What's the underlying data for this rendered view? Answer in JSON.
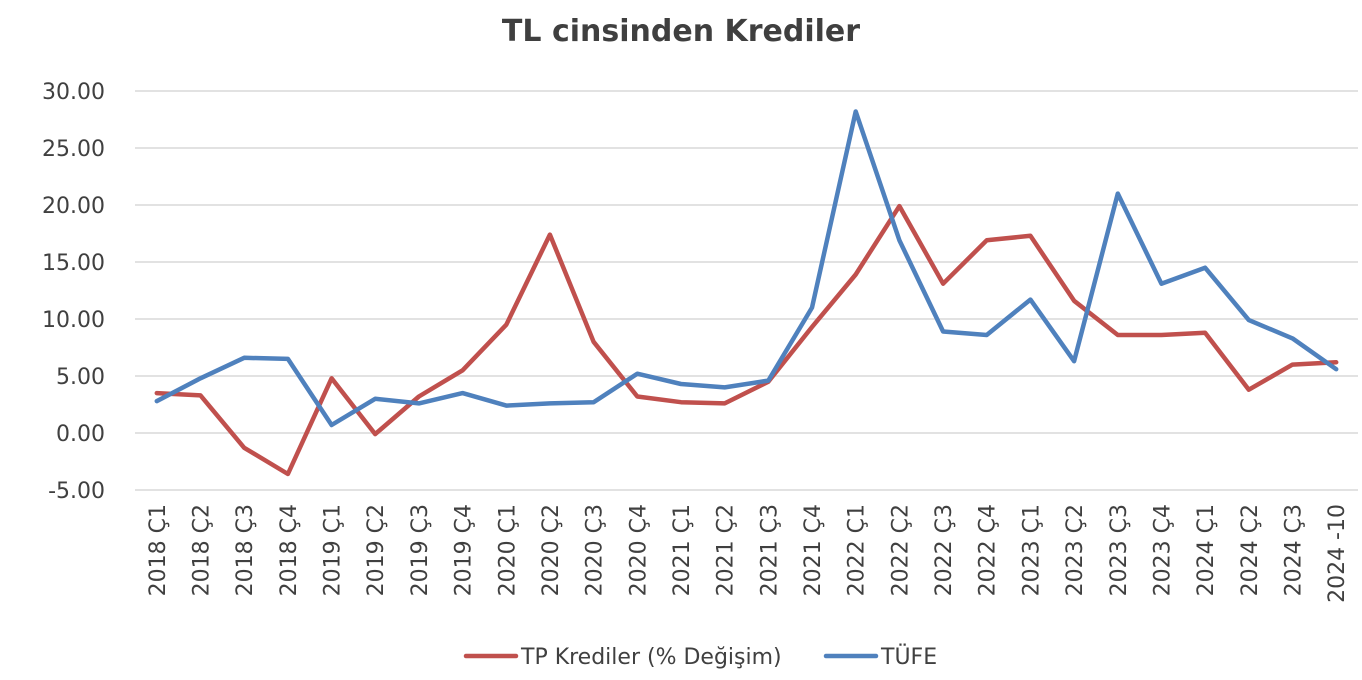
{
  "chart_data": {
    "type": "line",
    "title": "TL cinsinden Krediler",
    "xlabel": "",
    "ylabel": "",
    "ylim": [
      -5,
      30
    ],
    "y_ticks": [
      "30.00",
      "25.00",
      "20.00",
      "15.00",
      "10.00",
      "5.00",
      "0.00",
      "-5.00"
    ],
    "y_tick_values": [
      30,
      25,
      20,
      15,
      10,
      5,
      0,
      -5
    ],
    "grid": true,
    "legend_position": "bottom",
    "categories": [
      "2018 Ç1",
      "2018 Ç2",
      "2018 Ç3",
      "2018 Ç4",
      "2019 Ç1",
      "2019 Ç2",
      "2019 Ç3",
      "2019 Ç4",
      "2020 Ç1",
      "2020 Ç2",
      "2020 Ç3",
      "2020 Ç4",
      "2021 Ç1",
      "2021 Ç2",
      "2021 Ç3",
      "2021 Ç4",
      "2022 Ç1",
      "2022 Ç2",
      "2022 Ç3",
      "2022 Ç4",
      "2023 Ç1",
      "2023 Ç2",
      "2023 Ç3",
      "2023 Ç4",
      "2024 Ç1",
      "2024 Ç2",
      "2024 Ç3",
      "2024 -10"
    ],
    "series": [
      {
        "name": "TP Krediler (% Değişim)",
        "color": "#c0504d",
        "values": [
          3.5,
          3.3,
          -1.3,
          -3.6,
          4.8,
          -0.1,
          3.2,
          5.5,
          9.5,
          17.4,
          8.0,
          3.2,
          2.7,
          2.6,
          4.5,
          9.3,
          13.9,
          19.9,
          13.1,
          16.9,
          17.3,
          11.6,
          8.6,
          8.6,
          8.8,
          3.8,
          6.0,
          6.2
        ]
      },
      {
        "name": "TÜFE",
        "color": "#4f81bd",
        "values": [
          2.8,
          4.8,
          6.6,
          6.5,
          0.7,
          3.0,
          2.6,
          3.5,
          2.4,
          2.6,
          2.7,
          5.2,
          4.3,
          4.0,
          4.6,
          11.0,
          28.2,
          16.9,
          8.9,
          8.6,
          11.7,
          6.3,
          21.0,
          13.1,
          14.5,
          9.9,
          8.3,
          5.6
        ]
      }
    ]
  }
}
